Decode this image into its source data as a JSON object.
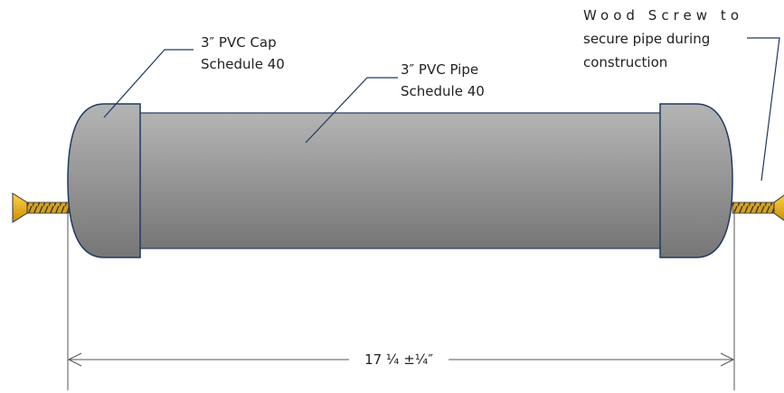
{
  "labels": {
    "cap": [
      "3″ PVC Cap",
      "Schedule 40"
    ],
    "pipe": [
      "3″ PVC Pipe",
      "Schedule 40"
    ],
    "screw": [
      "Wood Screw to",
      "secure pipe during",
      "construction"
    ],
    "dimension": "17 ¼ ±¼″"
  }
}
